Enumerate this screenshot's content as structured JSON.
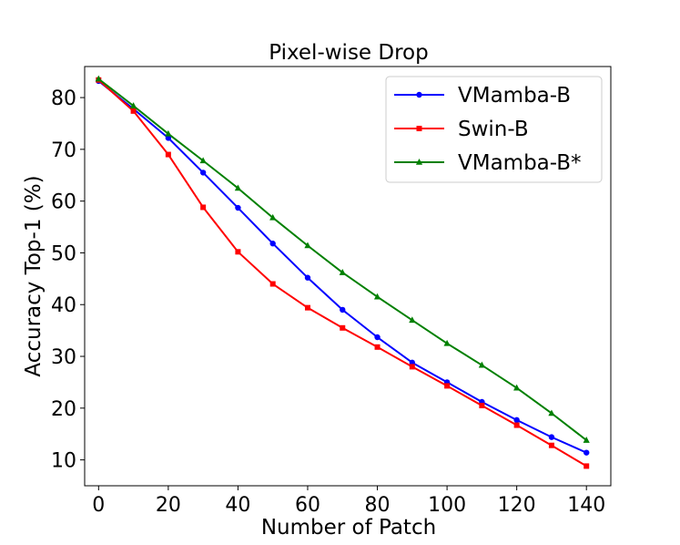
{
  "chart_data": {
    "type": "line",
    "title": "Pixel-wise Drop",
    "xlabel": "Number of Patch",
    "ylabel": "Accuracy Top-1 (%)",
    "xlim": [
      -4,
      147
    ],
    "ylim": [
      5,
      86
    ],
    "xticks": [
      0,
      20,
      40,
      60,
      80,
      100,
      120,
      140
    ],
    "yticks": [
      10,
      20,
      30,
      40,
      50,
      60,
      70,
      80
    ],
    "x": [
      0,
      10,
      20,
      30,
      40,
      50,
      60,
      70,
      80,
      90,
      100,
      110,
      120,
      130,
      140
    ],
    "legend_position": "top-right",
    "series": [
      {
        "name": "VMamba-B",
        "color": "#0000ff",
        "marker": "circle",
        "values": [
          83.2,
          77.8,
          72.2,
          65.5,
          58.7,
          51.8,
          45.2,
          39.0,
          33.7,
          28.8,
          25.0,
          21.2,
          17.7,
          14.4,
          11.4
        ]
      },
      {
        "name": "Swin-B",
        "color": "#ff0000",
        "marker": "square",
        "values": [
          83.4,
          77.4,
          69.0,
          58.8,
          50.2,
          44.0,
          39.4,
          35.5,
          31.8,
          28.0,
          24.3,
          20.5,
          16.7,
          12.8,
          8.8
        ]
      },
      {
        "name": "VMamba-B*",
        "color": "#008000",
        "marker": "triangle",
        "values": [
          83.6,
          78.4,
          73.0,
          67.8,
          62.5,
          56.8,
          51.4,
          46.2,
          41.5,
          37.0,
          32.5,
          28.3,
          23.9,
          19.0,
          13.8
        ]
      }
    ]
  }
}
